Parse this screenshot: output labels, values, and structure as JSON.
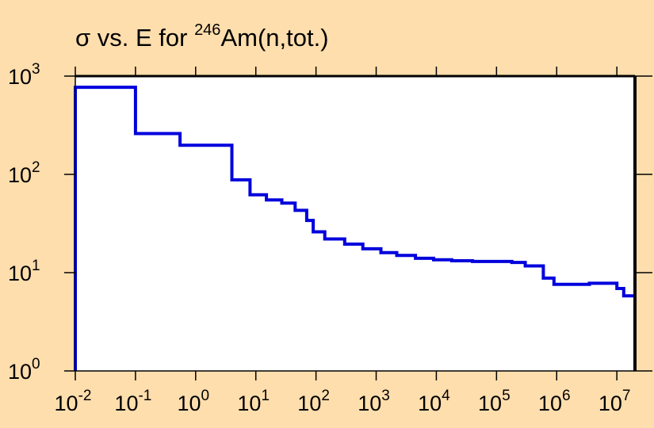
{
  "chart_data": {
    "type": "line",
    "title": {
      "prefix": "σ vs. E for ",
      "superscript": "246",
      "suffix": "Am(n,tot.)"
    },
    "xlabel": "",
    "ylabel": "",
    "x_scale": "log",
    "y_scale": "log",
    "xlim": [
      0.01,
      20000000
    ],
    "ylim": [
      1,
      1000
    ],
    "x_ticks": [
      {
        "base": "10",
        "exp": "-2",
        "value": 0.01
      },
      {
        "base": "10",
        "exp": "-1",
        "value": 0.1
      },
      {
        "base": "10",
        "exp": "0",
        "value": 1
      },
      {
        "base": "10",
        "exp": "1",
        "value": 10
      },
      {
        "base": "10",
        "exp": "2",
        "value": 100
      },
      {
        "base": "10",
        "exp": "3",
        "value": 1000
      },
      {
        "base": "10",
        "exp": "4",
        "value": 10000
      },
      {
        "base": "10",
        "exp": "5",
        "value": 100000
      },
      {
        "base": "10",
        "exp": "6",
        "value": 1000000
      },
      {
        "base": "10",
        "exp": "7",
        "value": 10000000
      }
    ],
    "y_ticks": [
      {
        "base": "10",
        "exp": "0",
        "value": 1
      },
      {
        "base": "10",
        "exp": "1",
        "value": 10
      },
      {
        "base": "10",
        "exp": "2",
        "value": 100
      },
      {
        "base": "10",
        "exp": "3",
        "value": 1000
      }
    ],
    "grid": false,
    "series": [
      {
        "step": "post",
        "color": "#0000DD",
        "points": [
          [
            0.01,
            1
          ],
          [
            0.01,
            770
          ],
          [
            0.1,
            260
          ],
          [
            0.55,
            198
          ],
          [
            4.0,
            88
          ],
          [
            8.0,
            62
          ],
          [
            15,
            55
          ],
          [
            27,
            51
          ],
          [
            45,
            43
          ],
          [
            70,
            34
          ],
          [
            90,
            26
          ],
          [
            140,
            22
          ],
          [
            300,
            19.5
          ],
          [
            600,
            17.5
          ],
          [
            1200,
            16
          ],
          [
            2200,
            15
          ],
          [
            4500,
            14
          ],
          [
            9000,
            13.5
          ],
          [
            18000,
            13.2
          ],
          [
            40000,
            13
          ],
          [
            180000,
            12.7
          ],
          [
            300000,
            11.7
          ],
          [
            600000,
            8.8
          ],
          [
            900000,
            7.6
          ],
          [
            3500000,
            7.8
          ],
          [
            10000000,
            6.9
          ],
          [
            13000000,
            5.8
          ],
          [
            20000000,
            5.8
          ],
          [
            20000000,
            1
          ]
        ]
      }
    ]
  },
  "colors": {
    "background": "#FFDEAD",
    "plot_area": "#FFFFFF",
    "line": "#0000DD"
  }
}
